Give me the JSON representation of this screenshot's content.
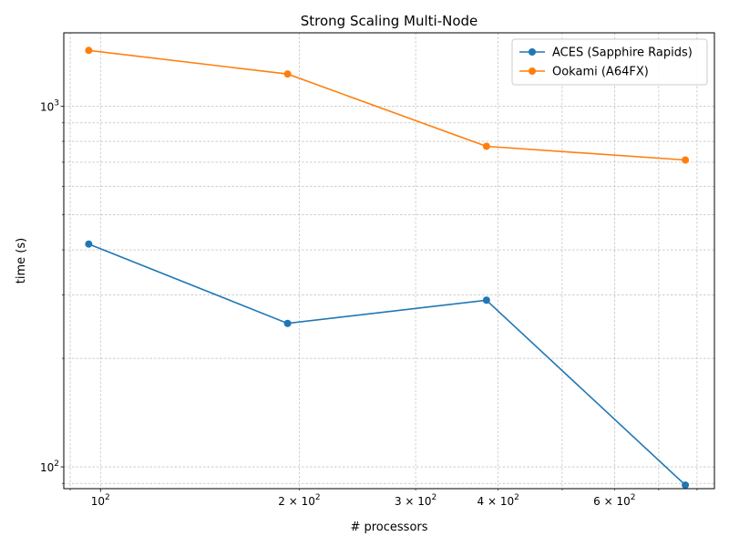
{
  "chart_data": {
    "type": "line",
    "title": "Strong Scaling Multi-Node",
    "xlabel": "# processors",
    "ylabel": "time (s)",
    "xscale": "log",
    "yscale": "log",
    "xlim": [
      88,
      850
    ],
    "ylim": [
      87,
      1600
    ],
    "grid": true,
    "legend_position": "top-right",
    "x_ticks": [
      {
        "value": 100,
        "base": "10",
        "exp": "2"
      },
      {
        "value": 200,
        "base": "2 × 10",
        "exp": "2"
      },
      {
        "value": 300,
        "base": "3 × 10",
        "exp": "2"
      },
      {
        "value": 400,
        "base": "4 × 10",
        "exp": "2"
      },
      {
        "value": 600,
        "base": "6 × 10",
        "exp": "2"
      }
    ],
    "y_ticks": [
      {
        "value": 100,
        "base": "10",
        "exp": "2"
      },
      {
        "value": 1000,
        "base": "10",
        "exp": "3"
      }
    ],
    "x": [
      96,
      192,
      384,
      768
    ],
    "series": [
      {
        "name": "ACES (Sapphire Rapids)",
        "color": "#1f77b4",
        "values": [
          415,
          250,
          290,
          89
        ]
      },
      {
        "name": "Ookami (A64FX)",
        "color": "#ff7f0e",
        "values": [
          1430,
          1230,
          775,
          710
        ]
      }
    ]
  }
}
